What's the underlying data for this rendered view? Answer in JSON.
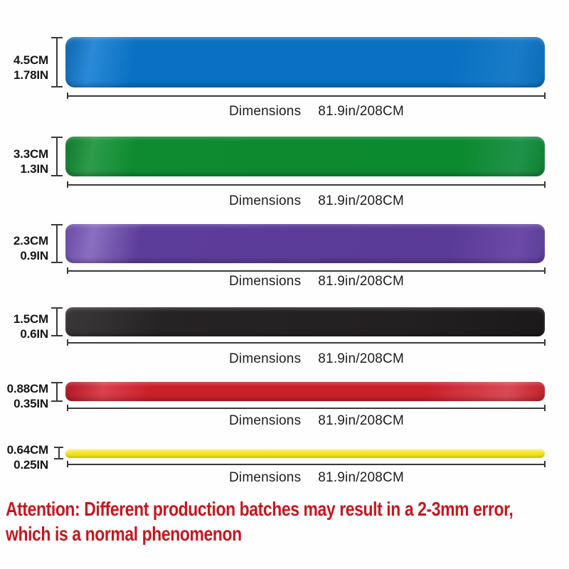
{
  "bands": [
    {
      "color_name": "blue",
      "hex": "#0871c1",
      "thickness_cm": "4.5CM",
      "thickness_in": "1.78IN",
      "dimensions_label": "Dimensions",
      "dimensions_value": "81.9in/208CM"
    },
    {
      "color_name": "green",
      "hex": "#0e8a30",
      "thickness_cm": "3.3CM",
      "thickness_in": "1.3IN",
      "dimensions_label": "Dimensions",
      "dimensions_value": "81.9in/208CM"
    },
    {
      "color_name": "purple",
      "hex": "#5c3d99",
      "thickness_cm": "2.3CM",
      "thickness_in": "0.9IN",
      "dimensions_label": "Dimensions",
      "dimensions_value": "81.9in/208CM"
    },
    {
      "color_name": "black",
      "hex": "#232021",
      "thickness_cm": "1.5CM",
      "thickness_in": "0.6IN",
      "dimensions_label": "Dimensions",
      "dimensions_value": "81.9in/208CM"
    },
    {
      "color_name": "red",
      "hex": "#c9202a",
      "thickness_cm": "0.88CM",
      "thickness_in": "0.35IN",
      "dimensions_label": "Dimensions",
      "dimensions_value": "81.9in/208CM"
    },
    {
      "color_name": "yellow",
      "hex": "#f4e01c",
      "thickness_cm": "0.64CM",
      "thickness_in": "0.25IN",
      "dimensions_label": "Dimensions",
      "dimensions_value": "81.9in/208CM"
    }
  ],
  "attention": {
    "line1": "Attention: Different production batches may result in a 2-3mm error,",
    "line2": "which is a normal phenomenon",
    "color": "#c8161d"
  }
}
